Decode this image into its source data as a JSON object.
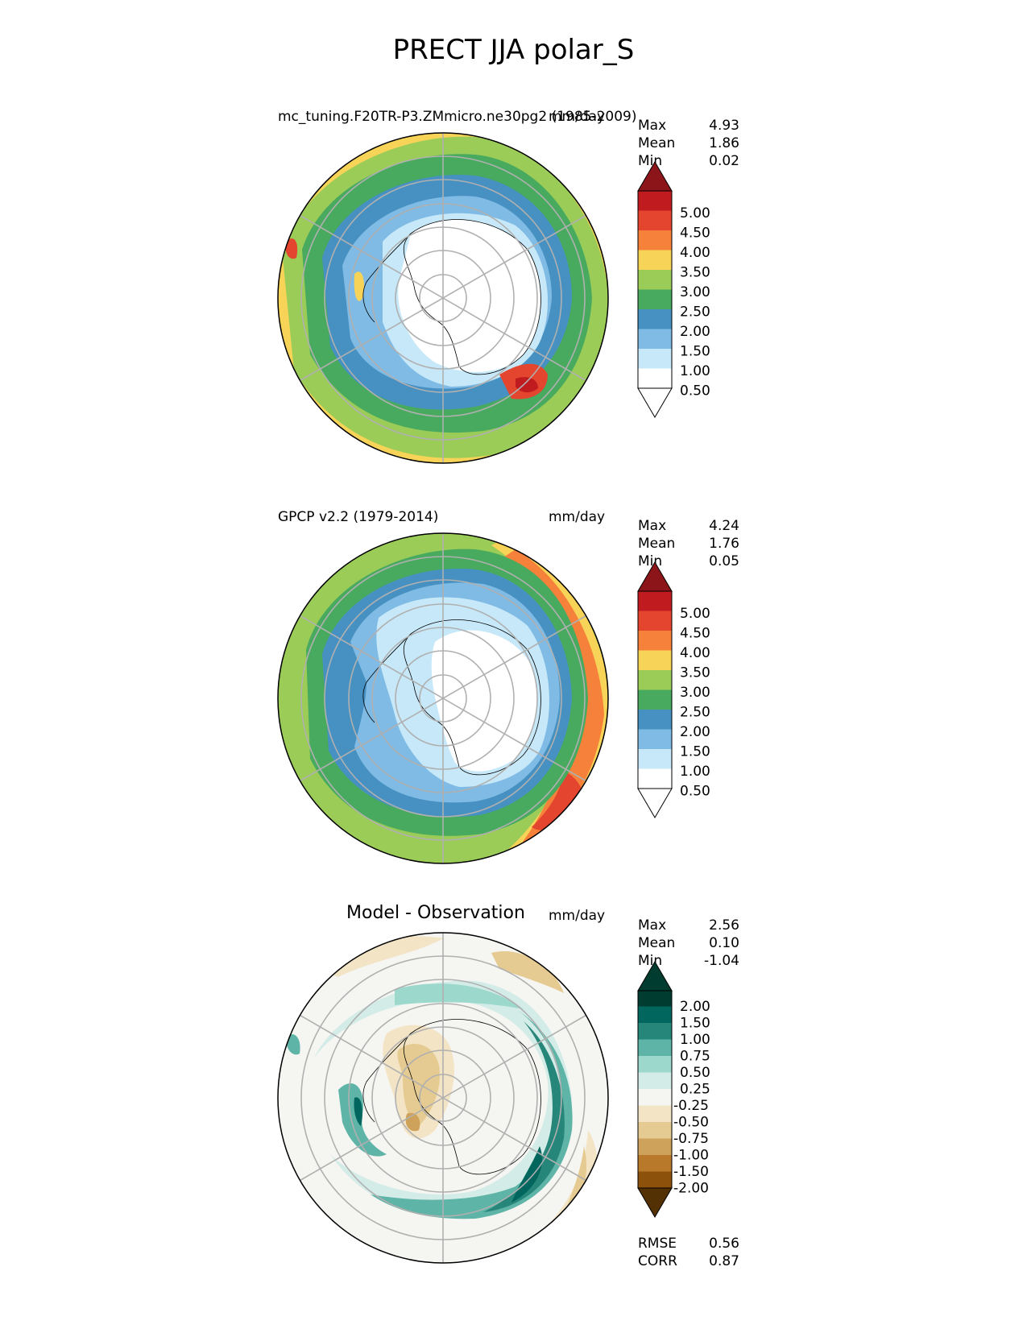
{
  "figure": {
    "title": "PRECT JJA polar_S"
  },
  "panels": [
    {
      "id": "test",
      "left_title": "mc_tuning.F20TR-P3.ZMmicro.ne30pg2 (1985-2009)",
      "units": "mm/day",
      "stats": {
        "max": "4.93",
        "mean": "1.86",
        "min": "0.02"
      },
      "colorbar": {
        "levels": [
          "0.50",
          "1.00",
          "1.50",
          "2.00",
          "2.50",
          "3.00",
          "3.50",
          "4.00",
          "4.50",
          "5.00"
        ],
        "colors": [
          "#ffffff",
          "#c6e8f8",
          "#7fbbe4",
          "#4691c2",
          "#48aa5e",
          "#9ccc58",
          "#f7d357",
          "#f5813a",
          "#e3452f",
          "#c01c20",
          "#8b1519"
        ]
      }
    },
    {
      "id": "reference",
      "left_title": "GPCP v2.2 (1979-2014)",
      "units": "mm/day",
      "stats": {
        "max": "4.24",
        "mean": "1.76",
        "min": "0.05"
      },
      "colorbar": {
        "levels": [
          "0.50",
          "1.00",
          "1.50",
          "2.00",
          "2.50",
          "3.00",
          "3.50",
          "4.00",
          "4.50",
          "5.00"
        ],
        "colors": [
          "#ffffff",
          "#c6e8f8",
          "#7fbbe4",
          "#4691c2",
          "#48aa5e",
          "#9ccc58",
          "#f7d357",
          "#f5813a",
          "#e3452f",
          "#c01c20",
          "#8b1519"
        ]
      }
    },
    {
      "id": "difference",
      "center_title": "Model - Observation",
      "units": "mm/day",
      "stats": {
        "max": "2.56",
        "mean": "0.10",
        "min": "-1.04"
      },
      "colorbar": {
        "levels": [
          "-2.00",
          "-1.50",
          "-1.00",
          "-0.75",
          "-0.50",
          "-0.25",
          "0.25",
          "0.50",
          "0.75",
          "1.00",
          "1.50",
          "2.00"
        ],
        "colors": [
          "#543005",
          "#8c510a",
          "#b8792a",
          "#cfa25c",
          "#e5cb92",
          "#f3e4c5",
          "#f5f5f2",
          "#d4ece7",
          "#9dd8cd",
          "#5db4a7",
          "#268679",
          "#01665e",
          "#003c30"
        ]
      },
      "metrics": {
        "rmse": "0.56",
        "corr": "0.87"
      }
    }
  ],
  "labels": {
    "max": "Max",
    "mean": "Mean",
    "min": "Min",
    "rmse": "RMSE",
    "corr": "CORR"
  }
}
